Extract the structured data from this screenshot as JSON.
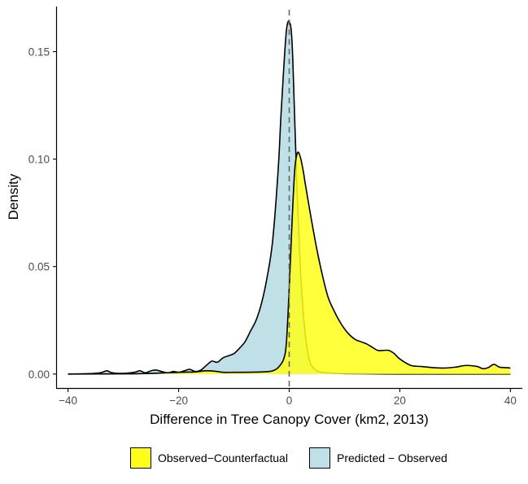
{
  "chart_data": {
    "type": "area",
    "xlabel": "Difference in Tree Canopy Cover (km2, 2013)",
    "ylabel": "Density",
    "xlim": [
      -42,
      42
    ],
    "ylim": [
      -0.0065,
      0.171
    ],
    "x_ticks": [
      -40,
      -20,
      0,
      20,
      40
    ],
    "x_tick_labels": [
      "−40",
      "−20",
      "0",
      "20",
      "40"
    ],
    "y_ticks": [
      0.0,
      0.05,
      0.1,
      0.15
    ],
    "y_tick_labels": [
      "0.00",
      "0.05",
      "0.10",
      "0.15"
    ],
    "grid": false,
    "legend_position": "bottom",
    "reference_line": {
      "x": 0,
      "style": "dashed",
      "color": "#666666"
    },
    "series": [
      {
        "name": "Predicted − Observed",
        "fill": "#bfe0e6",
        "x": [
          -40,
          -36,
          -34,
          -33,
          -32,
          -30,
          -28,
          -27,
          -26,
          -25,
          -24,
          -22,
          -21,
          -20,
          -19,
          -18,
          -17,
          -16,
          -15,
          -14,
          -13,
          -12,
          -11,
          -10,
          -9,
          -8,
          -7,
          -6,
          -5,
          -4,
          -3,
          -2,
          -1.5,
          -1,
          -0.5,
          0,
          0.5,
          1,
          1.5,
          2,
          2.5,
          3,
          3.5,
          4,
          5,
          6,
          8,
          10,
          15,
          20,
          30,
          40
        ],
        "values": [
          0.0,
          0.0002,
          0.0007,
          0.0015,
          0.0006,
          0.0003,
          0.0008,
          0.0015,
          0.0006,
          0.0015,
          0.0018,
          0.0005,
          0.0012,
          0.0008,
          0.0015,
          0.0022,
          0.0012,
          0.0018,
          0.004,
          0.006,
          0.0055,
          0.0075,
          0.0085,
          0.0095,
          0.012,
          0.015,
          0.02,
          0.025,
          0.033,
          0.045,
          0.062,
          0.095,
          0.12,
          0.142,
          0.16,
          0.164,
          0.155,
          0.118,
          0.08,
          0.05,
          0.03,
          0.016,
          0.008,
          0.004,
          0.0015,
          0.0008,
          0.0004,
          0.0002,
          0.0001,
          0.0,
          0.0,
          0.0
        ]
      },
      {
        "name": "Observed−Counterfactual",
        "fill": "#ffff1a",
        "x": [
          -40,
          -30,
          -25,
          -20,
          -17,
          -15,
          -13,
          -12,
          -10,
          -8,
          -6,
          -4,
          -3,
          -2,
          -1,
          -0.5,
          0,
          0.5,
          1,
          1.5,
          2,
          2.5,
          3,
          4,
          5,
          6,
          7,
          8,
          9,
          10,
          11,
          12,
          13,
          14,
          15,
          16,
          17,
          18,
          19,
          20,
          22,
          24,
          26,
          28,
          30,
          32,
          34,
          35,
          36,
          37,
          38,
          39,
          40
        ],
        "values": [
          0.0,
          0.0001,
          0.0003,
          0.0008,
          0.001,
          0.0015,
          0.0012,
          0.0008,
          0.0008,
          0.0008,
          0.0009,
          0.0011,
          0.0015,
          0.003,
          0.007,
          0.015,
          0.04,
          0.07,
          0.095,
          0.103,
          0.101,
          0.095,
          0.087,
          0.072,
          0.058,
          0.046,
          0.036,
          0.03,
          0.025,
          0.021,
          0.018,
          0.016,
          0.015,
          0.014,
          0.0125,
          0.011,
          0.011,
          0.011,
          0.0095,
          0.007,
          0.004,
          0.0035,
          0.003,
          0.0028,
          0.0032,
          0.004,
          0.0035,
          0.0025,
          0.003,
          0.0045,
          0.0032,
          0.003,
          0.0028
        ]
      }
    ],
    "legend": [
      {
        "label": "Observed−Counterfactual",
        "color": "#ffff1a"
      },
      {
        "label": "Predicted − Observed",
        "color": "#bfe0e6"
      }
    ]
  }
}
